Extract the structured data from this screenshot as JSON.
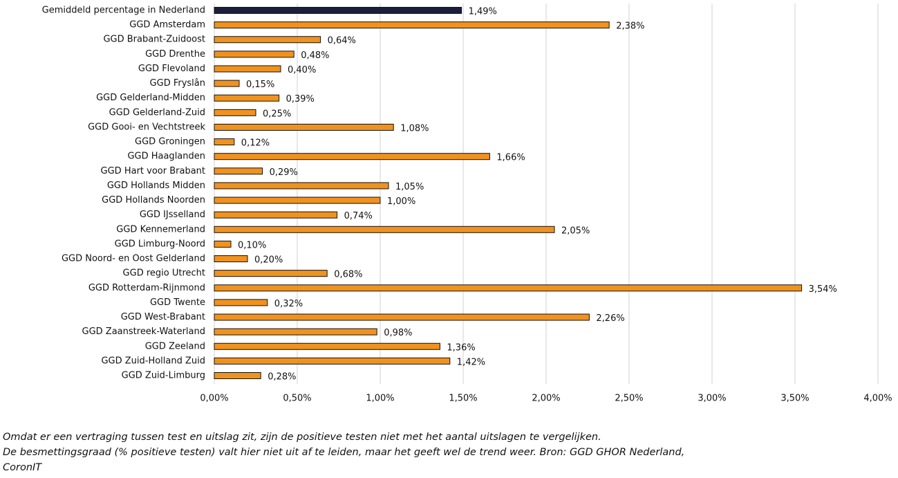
{
  "chart_data": {
    "type": "bar",
    "orientation": "horizontal",
    "categories": [
      "Gemiddeld percentage in Nederland",
      "GGD Amsterdam",
      "GGD Brabant-Zuidoost",
      "GGD Drenthe",
      "GGD Flevoland",
      "GGD Fryslân",
      "GGD Gelderland-Midden",
      "GGD Gelderland-Zuid",
      "GGD Gooi- en Vechtstreek",
      "GGD Groningen",
      "GGD Haaglanden",
      "GGD Hart voor Brabant",
      "GGD Hollands Midden",
      "GGD Hollands Noorden",
      "GGD IJsselland",
      "GGD Kennemerland",
      "GGD Limburg-Noord",
      "GGD Noord- en Oost Gelderland",
      "GGD regio Utrecht",
      "GGD Rotterdam-Rijnmond",
      "GGD Twente",
      "GGD West-Brabant",
      "GGD Zaanstreek-Waterland",
      "GGD Zeeland",
      "GGD Zuid-Holland Zuid",
      "GGD Zuid-Limburg"
    ],
    "values": [
      1.49,
      2.38,
      0.64,
      0.48,
      0.4,
      0.15,
      0.39,
      0.25,
      1.08,
      0.12,
      1.66,
      0.29,
      1.05,
      1.0,
      0.74,
      2.05,
      0.1,
      0.2,
      0.68,
      3.54,
      0.32,
      2.26,
      0.98,
      1.36,
      1.42,
      0.28
    ],
    "value_labels": [
      "1,49%",
      "2,38%",
      "0,64%",
      "0,48%",
      "0,40%",
      "0,15%",
      "0,39%",
      "0,25%",
      "1,08%",
      "0,12%",
      "1,66%",
      "0,29%",
      "1,05%",
      "1,00%",
      "0,74%",
      "2,05%",
      "0,10%",
      "0,20%",
      "0,68%",
      "3,54%",
      "0,32%",
      "2,26%",
      "0,98%",
      "1,36%",
      "1,42%",
      "0,28%"
    ],
    "colors": [
      "#1b1f3b",
      "#f0921f",
      "#f0921f",
      "#f0921f",
      "#f0921f",
      "#f0921f",
      "#f0921f",
      "#f0921f",
      "#f0921f",
      "#f0921f",
      "#f0921f",
      "#f0921f",
      "#f0921f",
      "#f0921f",
      "#f0921f",
      "#f0921f",
      "#f0921f",
      "#f0921f",
      "#f0921f",
      "#f0921f",
      "#f0921f",
      "#f0921f",
      "#f0921f",
      "#f0921f",
      "#f0921f",
      "#f0921f"
    ],
    "xlim": [
      0,
      4
    ],
    "xticks": [
      {
        "value": 0,
        "label": "0,00%"
      },
      {
        "value": 0.5,
        "label": "0,50%"
      },
      {
        "value": 1,
        "label": "1,00%"
      },
      {
        "value": 1.5,
        "label": "1,50%"
      },
      {
        "value": 2,
        "label": "2,00%"
      },
      {
        "value": 2.5,
        "label": "2,50%"
      },
      {
        "value": 3,
        "label": "3,00%"
      },
      {
        "value": 3.5,
        "label": "3,50%"
      },
      {
        "value": 4,
        "label": "4,00%"
      }
    ],
    "grid": true,
    "notes": [
      "Omdat er een vertraging tussen test en uitslag zit, zijn de positieve testen niet met het aantal uitslagen te vergelijken.",
      "De besmettingsgraad (% positieve testen) valt hier niet uit af te leiden, maar het geeft wel de trend weer. Bron: GGD GHOR Nederland,",
      "CoronIT"
    ]
  }
}
